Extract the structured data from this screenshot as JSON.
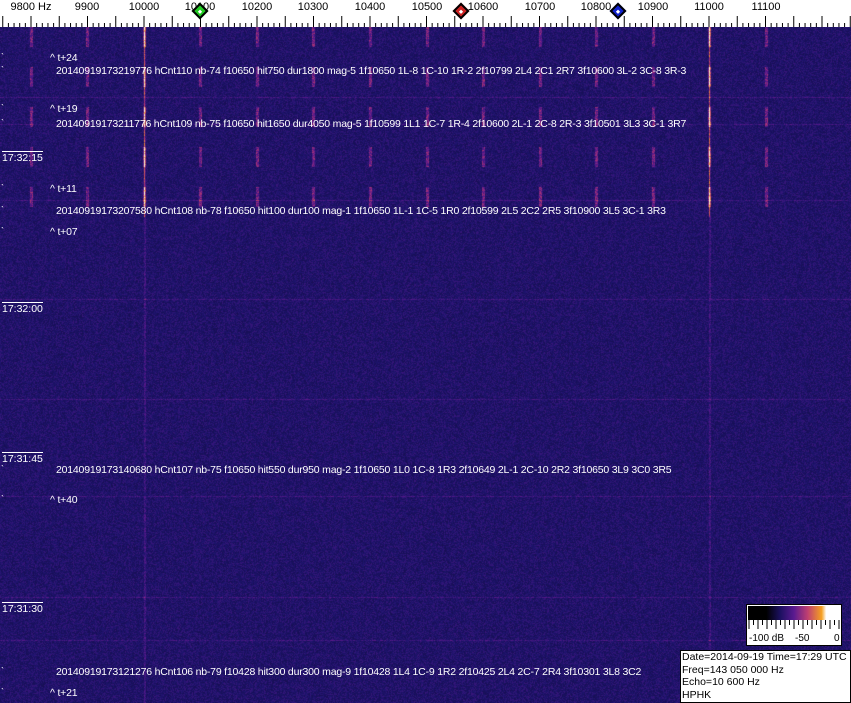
{
  "ruler": {
    "labels": [
      "9800 Hz",
      "9900",
      "10000",
      "10100",
      "10200",
      "10300",
      "10400",
      "10500",
      "10600",
      "10700",
      "10800",
      "10900",
      "11000",
      "11100"
    ],
    "markers": [
      {
        "name": "green-marker",
        "color": "#22cc22",
        "freq": 10100
      },
      {
        "name": "red-marker",
        "color": "#cc2222",
        "freq": 10560
      },
      {
        "name": "blue-marker",
        "color": "#1122cc",
        "freq": 10840
      }
    ]
  },
  "times": [
    "17:32:15",
    "17:32:00",
    "17:31:45",
    "17:31:30"
  ],
  "offsets": [
    "^ t+24",
    "^ t+19",
    "^ t+11",
    "^ t+07",
    "^ t+40",
    "^ t+21"
  ],
  "detections": [
    "20140919173219776 hCnt110 nb-74 f10650 hit750 dur1800 mag-5 1f10650 1L-8 1C-10 1R-2 2f10799 2L4 2C1 2R7 3f10600 3L-2 3C-8 3R-3",
    "20140919173211776 hCnt109 nb-75 f10650 hit1650 dur4050 mag-5 1f10599 1L1 1C-7 1R-4 2f10600 2L-1 2C-8 2R-3 3f10501 3L3 3C-1 3R7",
    "20140919173207580 hCnt108 nb-78 f10650 hit100 dur100 mag-1 1f10650 1L-1 1C-5 1R0 2f10599 2L5 2C2 2R5 3f10900 3L5 3C-1 3R3",
    "20140919173140680 hCnt107 nb-75 f10650 hit550 dur950 mag-2 1f10650 1L0 1C-8 1R3 2f10649 2L-1 2C-10 2R2 3f10650 3L9 3C0 3R5",
    "20140919173121276 hCnt106 nb-79 f10428 hit300 dur300 mag-9 1f10428 1L4 1C-9 1R2 2f10425 2L4 2C-7 2R4 3f10301 3L8 3C2"
  ],
  "colorbar": {
    "min_label": "-100 dB",
    "mid_label": "-50",
    "max_label": "0"
  },
  "info": {
    "datetime": "Date=2014-09-19 Time=17:29 UTC",
    "freq": "Freq=143 050 000 Hz",
    "echo": "Echo=10 600 Hz",
    "station": "HPHK"
  },
  "colors": {
    "background": "#1e1466",
    "signal": "#f5a020"
  }
}
